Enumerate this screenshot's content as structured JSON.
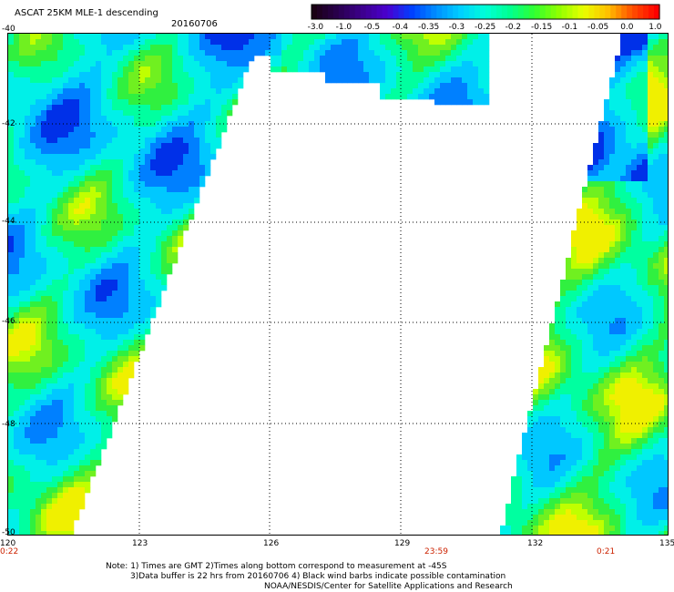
{
  "header": {
    "title": "ASCAT 25KM MLE-1 descending",
    "date": "20160706"
  },
  "colorbar": {
    "labels": [
      "-3.0",
      "-1.0",
      "-0.5",
      "-0.4",
      "-0.35",
      "-0.3",
      "-0.25",
      "-0.2",
      "-0.15",
      "-0.1",
      "-0.05",
      "0.0",
      "1.0"
    ],
    "colors": [
      "#1a0014",
      "#2a0050",
      "#3d0090",
      "#4a00d0",
      "#0040ff",
      "#0090ff",
      "#00d0ff",
      "#00ffd8",
      "#00ff90",
      "#30ff30",
      "#90ff00",
      "#e8ff00",
      "#ffc000",
      "#ff5000",
      "#ff0000"
    ]
  },
  "map": {
    "lat_labels": [
      "-40",
      "-42",
      "-44",
      "-46",
      "-48",
      "-50"
    ],
    "lon_labels": [
      "120",
      "123",
      "126",
      "129",
      "132",
      "135"
    ],
    "time_labels": [
      "0:22",
      "23:59",
      "0:21"
    ]
  },
  "notes": {
    "line1": "Note: 1) Times are GMT 2)Times along bottom correspond to measurement at -45S",
    "line2": "3)Data buffer is 22 hrs from 20160706 4) Black wind barbs indicate possible contamination",
    "line3": "NOAA/NESDIS/Center for Satellite Applications and Research"
  }
}
